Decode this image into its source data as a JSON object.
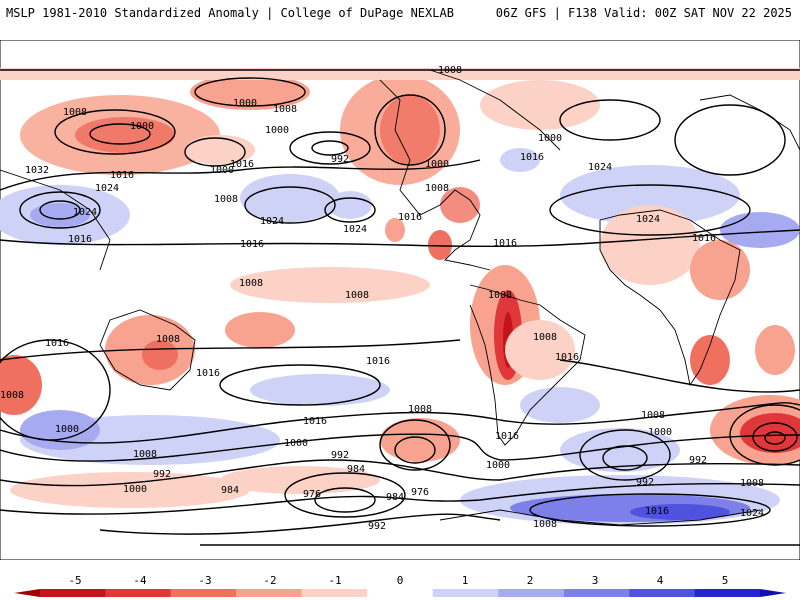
{
  "header": {
    "left": "MSLP 1981-2010 Standardized Anomaly | College of DuPage NEXLAB",
    "right": "06Z GFS | F138 Valid: 00Z SAT NOV 22 2025"
  },
  "isobar_labels": [
    "1008",
    "1000",
    "1008",
    "1000",
    "1000",
    "1000",
    "1008",
    "1016",
    "992",
    "1000",
    "1008",
    "1000",
    "1016",
    "1008",
    "1024",
    "1032",
    "1016",
    "1024",
    "1024",
    "1024",
    "1016",
    "1016",
    "1016",
    "1024",
    "1024",
    "1016",
    "1016",
    "1008",
    "1008",
    "1016",
    "1016",
    "1008",
    "1008",
    "1016",
    "1016",
    "1008",
    "1008",
    "1016",
    "1000",
    "1008",
    "1008",
    "1016",
    "1000",
    "992",
    "984",
    "1000",
    "992",
    "1000",
    "984",
    "976",
    "984",
    "976",
    "992",
    "1000",
    "992",
    "1008",
    "1008",
    "1016",
    "1024",
    "1008",
    "992"
  ],
  "colorbar": {
    "ticks": [
      "-5",
      "-4",
      "-3",
      "-2",
      "-1",
      "0",
      "1",
      "2",
      "3",
      "4",
      "5"
    ],
    "colors": [
      "#c3141b",
      "#e0383a",
      "#f0705f",
      "#f8a38f",
      "#fcd2c6",
      "#ffffff",
      "#cfd2f7",
      "#a6aaf0",
      "#7d80e8",
      "#4f52dc",
      "#2326cf"
    ]
  }
}
